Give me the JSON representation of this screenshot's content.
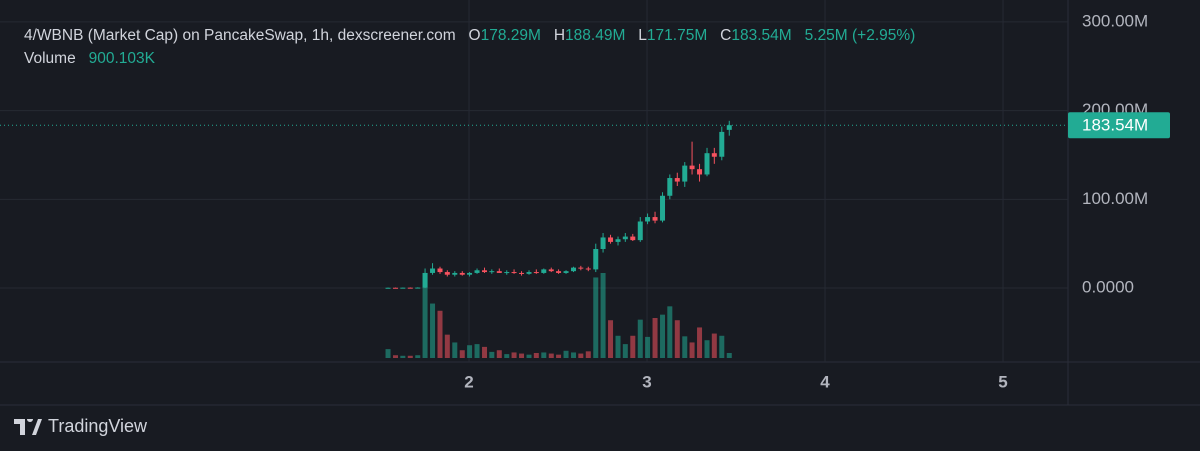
{
  "chart_data": {
    "type": "candlestick",
    "title": "4/WBNB (Market Cap) on PancakeSwap, 1h, dexscreener.com",
    "ohlc_legend": {
      "open_label": "O",
      "open": "178.29M",
      "high_label": "H",
      "high": "188.49M",
      "low_label": "L",
      "low": "171.75M",
      "close_label": "C",
      "close": "183.54M",
      "change": "5.25M (+2.95%)"
    },
    "volume_name": "Volume",
    "volume_last_label": "900.103K",
    "up_color": "#22ab94",
    "down_color": "#f7525f",
    "x": [
      1.545,
      1.587,
      1.628,
      1.67,
      1.712,
      1.753,
      1.795,
      1.837,
      1.878,
      1.92,
      1.962,
      2.003,
      2.045,
      2.087,
      2.128,
      2.17,
      2.212,
      2.253,
      2.295,
      2.337,
      2.378,
      2.42,
      2.462,
      2.503,
      2.545,
      2.587,
      2.628,
      2.67,
      2.712,
      2.753,
      2.795,
      2.837,
      2.878,
      2.92,
      2.962,
      3.003,
      3.045,
      3.087,
      3.128,
      3.17,
      3.212,
      3.253,
      3.295,
      3.337,
      3.378,
      3.42,
      3.462
    ],
    "open": [
      0,
      0.3,
      0.2,
      0.4,
      0.3,
      0.5,
      17,
      22,
      18,
      15,
      17,
      15,
      17,
      20,
      18,
      19,
      17,
      18,
      17,
      16,
      18,
      17,
      21,
      19,
      17,
      19,
      23,
      22,
      21,
      44,
      57,
      52,
      55,
      58,
      54,
      75,
      80,
      76,
      104,
      124,
      120,
      138,
      134,
      128,
      152,
      148,
      178.29
    ],
    "high": [
      0.5,
      0.6,
      0.5,
      0.7,
      0.8,
      22,
      28,
      24,
      20,
      19,
      19,
      18,
      22,
      23,
      21,
      22,
      20,
      21,
      19,
      20,
      21,
      22,
      23,
      21,
      20,
      24,
      25,
      24,
      50,
      62,
      60,
      58,
      62,
      61,
      80,
      84,
      86,
      108,
      128,
      130,
      142,
      165,
      140,
      158,
      158,
      182,
      188.49
    ],
    "low": [
      0,
      0.1,
      0,
      0.2,
      0.1,
      0,
      15,
      16,
      13,
      13,
      14,
      13,
      16,
      17,
      16,
      17,
      15,
      16,
      14,
      15,
      16,
      16,
      18,
      16,
      16,
      18,
      20,
      19,
      18,
      40,
      50,
      48,
      52,
      53,
      52,
      72,
      73,
      74,
      100,
      115,
      114,
      128,
      120,
      126,
      140,
      144,
      171.75
    ],
    "close": [
      0.3,
      0.2,
      0.4,
      0.3,
      0.5,
      17,
      22,
      18,
      15,
      17,
      15,
      17,
      20,
      18,
      19,
      17,
      18,
      17,
      16,
      18,
      17,
      21,
      19,
      17,
      19,
      23,
      22,
      21,
      44,
      57,
      52,
      55,
      58,
      54,
      75,
      80,
      76,
      104,
      124,
      120,
      138,
      134,
      128,
      152,
      148,
      176,
      183.54
    ],
    "volume": [
      1600,
      500,
      400,
      400,
      500,
      15300,
      9800,
      8500,
      4200,
      2800,
      1400,
      2300,
      2500,
      2000,
      1100,
      1400,
      700,
      1000,
      800,
      600,
      900,
      1000,
      800,
      600,
      1300,
      1000,
      800,
      1200,
      14500,
      15300,
      6800,
      4000,
      2500,
      4000,
      6900,
      3800,
      7200,
      7800,
      9300,
      6800,
      3900,
      2800,
      5500,
      3200,
      4400,
      4000,
      900.103
    ],
    "last_price": {
      "value": 183.54,
      "label": "183.54M"
    },
    "ylim": [
      -83.4,
      324.7
    ],
    "yticks": [
      {
        "value": 0,
        "label": "0.0000"
      },
      {
        "value": 100,
        "label": "100.00M"
      },
      {
        "value": 200,
        "label": "200.00M"
      },
      {
        "value": 300,
        "label": "300.00M"
      }
    ],
    "xlim": [
      -0.635,
      5.365
    ],
    "xticks": [
      2,
      3,
      4,
      5
    ],
    "grid": true
  },
  "watermark": "TradingView"
}
